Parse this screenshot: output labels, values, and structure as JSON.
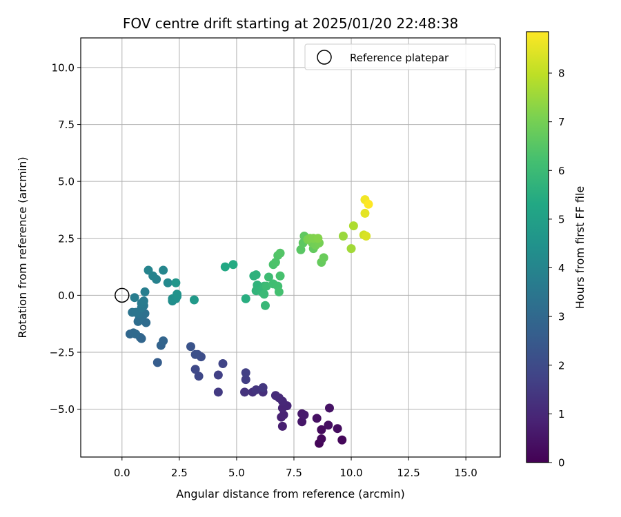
{
  "chart_data": {
    "type": "scatter",
    "title": "FOV centre drift starting at 2025/01/20 22:48:38",
    "xlabel": "Angular distance from reference (arcmin)",
    "ylabel": "Rotation from reference (arcmin)",
    "xlim": [
      -1.8,
      16.5
    ],
    "ylim": [
      -7.1,
      11.3
    ],
    "xticks": [
      0,
      2.5,
      5,
      7.5,
      10,
      12.5,
      15
    ],
    "xtick_labels": [
      "0.0",
      "2.5",
      "5.0",
      "7.5",
      "10.0",
      "12.5",
      "15.0"
    ],
    "yticks": [
      -5,
      -2.5,
      0,
      2.5,
      5,
      7.5,
      10
    ],
    "ytick_labels": [
      "−5.0",
      "−2.5",
      "0.0",
      "2.5",
      "5.0",
      "7.5",
      "10.0"
    ],
    "grid": true,
    "legend": {
      "position": "top-right",
      "entries": [
        "Reference platepar"
      ]
    },
    "reference_point": {
      "x": 0.0,
      "y": 0.0
    },
    "colorbar": {
      "label": "Hours from first FF file",
      "min": 0,
      "max": 8.85,
      "ticks": [
        0,
        1,
        2,
        3,
        4,
        5,
        6,
        7,
        8
      ],
      "tick_labels": [
        "0",
        "1",
        "2",
        "3",
        "4",
        "5",
        "6",
        "7",
        "8"
      ],
      "colormap": "viridis"
    },
    "points": [
      {
        "x": 8.6,
        "y": -6.5,
        "h": 0.1
      },
      {
        "x": 9.6,
        "y": -6.35,
        "h": 0.15
      },
      {
        "x": 8.7,
        "y": -6.3,
        "h": 0.2
      },
      {
        "x": 8.7,
        "y": -5.9,
        "h": 0.25
      },
      {
        "x": 9.4,
        "y": -5.85,
        "h": 0.3
      },
      {
        "x": 9.0,
        "y": -5.7,
        "h": 0.35
      },
      {
        "x": 8.5,
        "y": -5.4,
        "h": 0.4
      },
      {
        "x": 9.05,
        "y": -4.95,
        "h": 0.45
      },
      {
        "x": 7.85,
        "y": -5.55,
        "h": 0.55
      },
      {
        "x": 7.85,
        "y": -5.2,
        "h": 0.6
      },
      {
        "x": 7.95,
        "y": -5.25,
        "h": 0.65
      },
      {
        "x": 7.0,
        "y": -5.75,
        "h": 0.75
      },
      {
        "x": 6.95,
        "y": -5.35,
        "h": 0.8
      },
      {
        "x": 7.05,
        "y": -5.25,
        "h": 0.85
      },
      {
        "x": 7.0,
        "y": -4.95,
        "h": 0.9
      },
      {
        "x": 7.2,
        "y": -4.85,
        "h": 0.95
      },
      {
        "x": 7.0,
        "y": -4.65,
        "h": 1.0
      },
      {
        "x": 6.85,
        "y": -4.5,
        "h": 1.05
      },
      {
        "x": 6.7,
        "y": -4.4,
        "h": 1.1
      },
      {
        "x": 6.15,
        "y": -4.25,
        "h": 1.2
      },
      {
        "x": 5.7,
        "y": -4.25,
        "h": 1.25
      },
      {
        "x": 5.35,
        "y": -4.25,
        "h": 1.3
      },
      {
        "x": 5.85,
        "y": -4.15,
        "h": 1.35
      },
      {
        "x": 6.15,
        "y": -4.05,
        "h": 1.4
      },
      {
        "x": 4.2,
        "y": -4.25,
        "h": 1.5
      },
      {
        "x": 5.4,
        "y": -3.7,
        "h": 1.6
      },
      {
        "x": 5.4,
        "y": -3.4,
        "h": 1.65
      },
      {
        "x": 4.2,
        "y": -3.5,
        "h": 1.7
      },
      {
        "x": 4.4,
        "y": -3.0,
        "h": 1.8
      },
      {
        "x": 3.35,
        "y": -3.55,
        "h": 1.9
      },
      {
        "x": 3.2,
        "y": -3.25,
        "h": 1.95
      },
      {
        "x": 3.45,
        "y": -2.7,
        "h": 2.05
      },
      {
        "x": 3.3,
        "y": -2.6,
        "h": 2.1
      },
      {
        "x": 3.2,
        "y": -2.6,
        "h": 2.15
      },
      {
        "x": 3.0,
        "y": -2.25,
        "h": 2.25
      },
      {
        "x": 1.55,
        "y": -2.95,
        "h": 2.6
      },
      {
        "x": 1.7,
        "y": -2.2,
        "h": 2.8
      },
      {
        "x": 1.8,
        "y": -2.0,
        "h": 2.85
      },
      {
        "x": 0.8,
        "y": -1.85,
        "h": 2.9
      },
      {
        "x": 0.85,
        "y": -1.9,
        "h": 2.92
      },
      {
        "x": 0.35,
        "y": -1.7,
        "h": 2.95
      },
      {
        "x": 0.5,
        "y": -1.65,
        "h": 3.0
      },
      {
        "x": 0.6,
        "y": -1.7,
        "h": 3.05
      },
      {
        "x": 1.05,
        "y": -1.2,
        "h": 3.1
      },
      {
        "x": 0.7,
        "y": -1.15,
        "h": 3.15
      },
      {
        "x": 0.75,
        "y": -1.05,
        "h": 3.2
      },
      {
        "x": 0.9,
        "y": -0.9,
        "h": 3.25
      },
      {
        "x": 1.0,
        "y": -0.8,
        "h": 3.3
      },
      {
        "x": 0.7,
        "y": -0.8,
        "h": 3.35
      },
      {
        "x": 0.45,
        "y": -0.75,
        "h": 3.4
      },
      {
        "x": 0.6,
        "y": -0.75,
        "h": 3.45
      },
      {
        "x": 0.85,
        "y": -0.55,
        "h": 3.5
      },
      {
        "x": 0.95,
        "y": -0.45,
        "h": 3.55
      },
      {
        "x": 0.85,
        "y": -0.35,
        "h": 3.6
      },
      {
        "x": 0.95,
        "y": -0.25,
        "h": 3.65
      },
      {
        "x": 0.55,
        "y": -0.1,
        "h": 3.7
      },
      {
        "x": 1.0,
        "y": 0.15,
        "h": 3.75
      },
      {
        "x": 1.5,
        "y": 0.7,
        "h": 3.85
      },
      {
        "x": 1.35,
        "y": 0.85,
        "h": 3.9
      },
      {
        "x": 1.15,
        "y": 1.1,
        "h": 3.95
      },
      {
        "x": 1.8,
        "y": 1.1,
        "h": 4.05
      },
      {
        "x": 2.0,
        "y": 0.55,
        "h": 4.15
      },
      {
        "x": 2.2,
        "y": -0.25,
        "h": 4.3
      },
      {
        "x": 2.2,
        "y": -0.15,
        "h": 4.35
      },
      {
        "x": 2.35,
        "y": -0.15,
        "h": 4.4
      },
      {
        "x": 2.4,
        "y": -0.05,
        "h": 4.45
      },
      {
        "x": 2.4,
        "y": 0.05,
        "h": 4.5
      },
      {
        "x": 2.35,
        "y": 0.55,
        "h": 4.6
      },
      {
        "x": 3.15,
        "y": -0.2,
        "h": 4.75
      },
      {
        "x": 4.5,
        "y": 1.25,
        "h": 5.3
      },
      {
        "x": 4.85,
        "y": 1.35,
        "h": 5.4
      },
      {
        "x": 5.4,
        "y": -0.15,
        "h": 5.5
      },
      {
        "x": 5.75,
        "y": 0.85,
        "h": 5.6
      },
      {
        "x": 5.85,
        "y": 0.9,
        "h": 5.65
      },
      {
        "x": 5.9,
        "y": 0.45,
        "h": 5.7
      },
      {
        "x": 5.85,
        "y": 0.2,
        "h": 5.75
      },
      {
        "x": 6.1,
        "y": 0.15,
        "h": 5.8
      },
      {
        "x": 6.2,
        "y": 0.4,
        "h": 5.85
      },
      {
        "x": 6.25,
        "y": -0.45,
        "h": 5.9
      },
      {
        "x": 6.2,
        "y": 0.05,
        "h": 5.95
      },
      {
        "x": 6.3,
        "y": 0.4,
        "h": 6.0
      },
      {
        "x": 6.4,
        "y": 0.8,
        "h": 6.05
      },
      {
        "x": 6.6,
        "y": 0.5,
        "h": 6.1
      },
      {
        "x": 6.8,
        "y": 0.4,
        "h": 6.15
      },
      {
        "x": 6.85,
        "y": 0.15,
        "h": 6.2
      },
      {
        "x": 6.9,
        "y": 0.85,
        "h": 6.25
      },
      {
        "x": 6.6,
        "y": 1.35,
        "h": 6.3
      },
      {
        "x": 6.7,
        "y": 1.45,
        "h": 6.35
      },
      {
        "x": 6.8,
        "y": 1.75,
        "h": 6.4
      },
      {
        "x": 6.9,
        "y": 1.85,
        "h": 6.45
      },
      {
        "x": 7.8,
        "y": 2.0,
        "h": 6.55
      },
      {
        "x": 7.9,
        "y": 2.3,
        "h": 6.6
      },
      {
        "x": 7.95,
        "y": 2.6,
        "h": 6.65
      },
      {
        "x": 8.35,
        "y": 2.05,
        "h": 6.7
      },
      {
        "x": 8.7,
        "y": 1.45,
        "h": 6.75
      },
      {
        "x": 8.8,
        "y": 1.65,
        "h": 6.8
      },
      {
        "x": 8.3,
        "y": 2.3,
        "h": 6.9
      },
      {
        "x": 8.45,
        "y": 2.2,
        "h": 6.95
      },
      {
        "x": 8.6,
        "y": 2.3,
        "h": 7.0
      },
      {
        "x": 8.1,
        "y": 2.45,
        "h": 7.05
      },
      {
        "x": 8.2,
        "y": 2.5,
        "h": 7.1
      },
      {
        "x": 8.35,
        "y": 2.5,
        "h": 7.15
      },
      {
        "x": 8.55,
        "y": 2.5,
        "h": 7.2
      },
      {
        "x": 9.65,
        "y": 2.6,
        "h": 7.5
      },
      {
        "x": 10.0,
        "y": 2.05,
        "h": 7.6
      },
      {
        "x": 10.1,
        "y": 3.05,
        "h": 7.75
      },
      {
        "x": 10.55,
        "y": 2.65,
        "h": 8.2
      },
      {
        "x": 10.65,
        "y": 2.6,
        "h": 8.35
      },
      {
        "x": 10.6,
        "y": 3.6,
        "h": 8.5
      },
      {
        "x": 10.6,
        "y": 4.2,
        "h": 8.7
      },
      {
        "x": 10.75,
        "y": 4.0,
        "h": 8.85
      }
    ]
  }
}
